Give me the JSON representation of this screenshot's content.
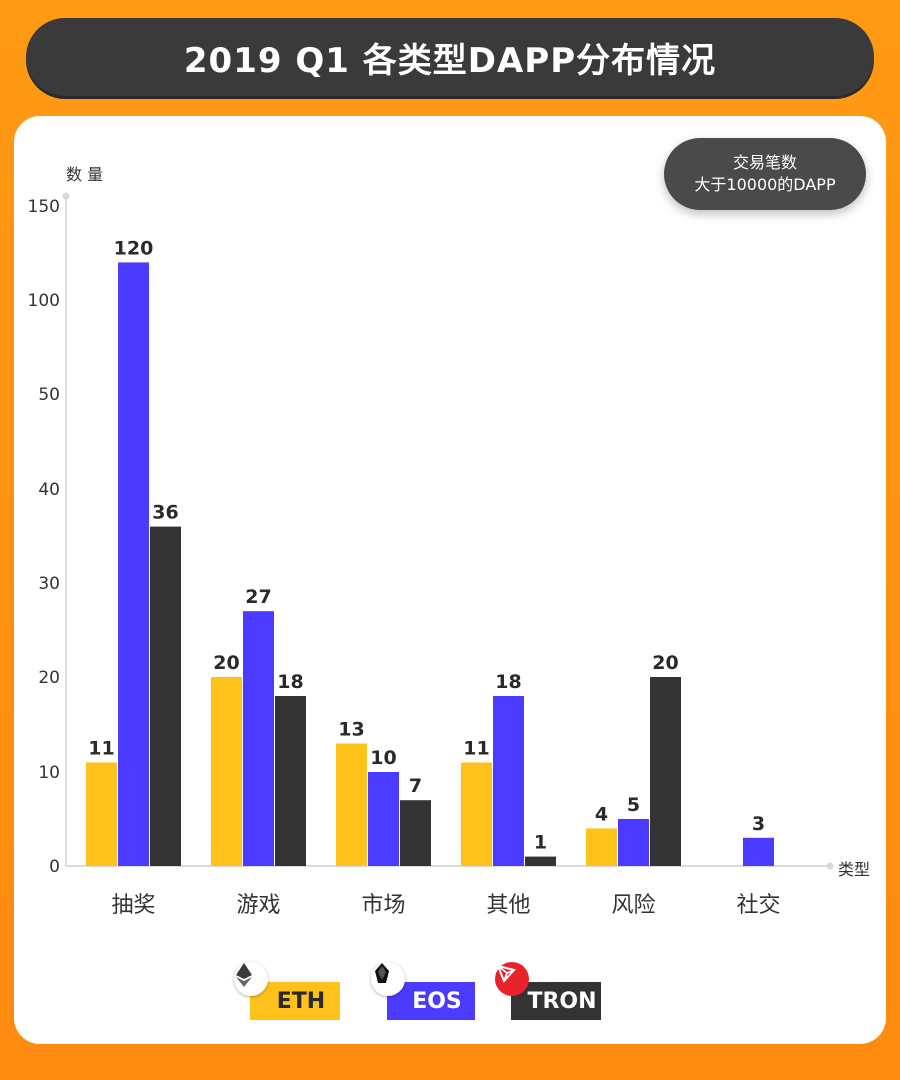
{
  "header": {
    "title": "2019 Q1 各类型DAPP分布情况"
  },
  "note": {
    "line1": "交易笔数",
    "line2": "大于10000的DAPP"
  },
  "chart_data": {
    "type": "bar",
    "title": "2019 Q1 各类型DAPP分布情况",
    "ylabel": "数 量",
    "xlabel": "类型",
    "categories": [
      "抽奖",
      "游戏",
      "市场",
      "其他",
      "风险",
      "社交"
    ],
    "ytick_labels": [
      "0",
      "10",
      "20",
      "30",
      "40",
      "50",
      "100",
      "150"
    ],
    "series": [
      {
        "name": "ETH",
        "color": "#ffc21a",
        "values": [
          11,
          20,
          13,
          11,
          4,
          null
        ]
      },
      {
        "name": "EOS",
        "color": "#4b3bff",
        "values": [
          120,
          27,
          10,
          18,
          5,
          3
        ]
      },
      {
        "name": "TRON",
        "color": "#333333",
        "values": [
          36,
          18,
          7,
          1,
          20,
          null
        ]
      }
    ],
    "legend": "bottom"
  },
  "legend": {
    "items": [
      {
        "label": "ETH",
        "color": "#ffc21a",
        "icon": "ethereum-icon"
      },
      {
        "label": "EOS",
        "color": "#4b3bff",
        "icon": "eos-icon"
      },
      {
        "label": "TRON",
        "color": "#333333",
        "icon": "tron-icon"
      }
    ]
  }
}
